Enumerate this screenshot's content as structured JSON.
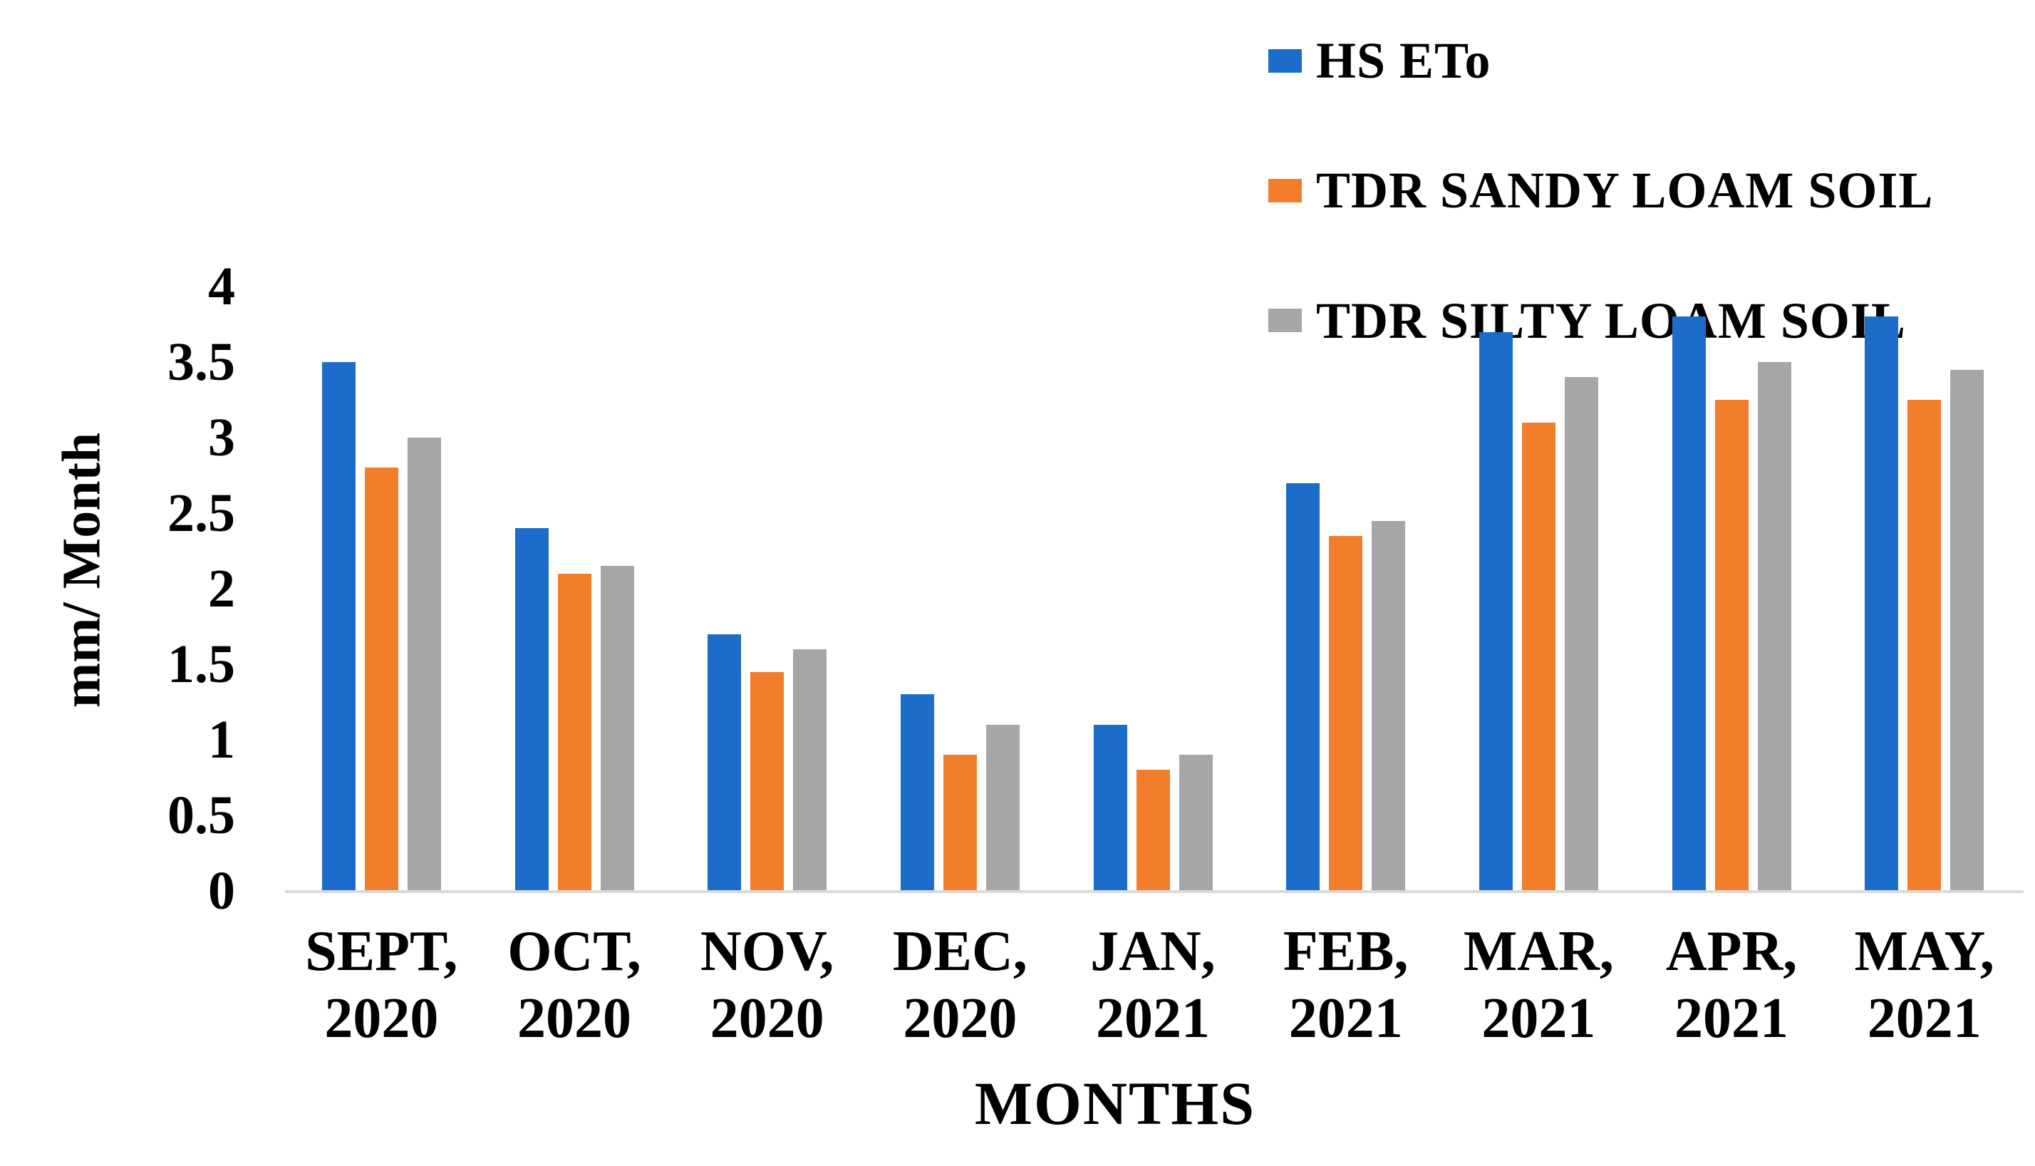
{
  "chart_data": {
    "type": "bar",
    "title": "",
    "xlabel": "MONTHS",
    "ylabel": "mm/ Month",
    "ylim": [
      0,
      4
    ],
    "ytick_step": 0.5,
    "yticks": [
      {
        "value": 4,
        "label": "4"
      },
      {
        "value": 3.5,
        "label": "3.5"
      },
      {
        "value": 3,
        "label": "3"
      },
      {
        "value": 2.5,
        "label": "2.5"
      },
      {
        "value": 2,
        "label": "2"
      },
      {
        "value": 1.5,
        "label": "1.5"
      },
      {
        "value": 1,
        "label": "1"
      },
      {
        "value": 0.5,
        "label": "0.5"
      },
      {
        "value": 0,
        "label": "0"
      }
    ],
    "categories": [
      {
        "line1": "SEPT,",
        "line2": "2020"
      },
      {
        "line1": "OCT,",
        "line2": "2020"
      },
      {
        "line1": "NOV,",
        "line2": "2020"
      },
      {
        "line1": "DEC,",
        "line2": "2020"
      },
      {
        "line1": "JAN,",
        "line2": "2021"
      },
      {
        "line1": "FEB,",
        "line2": "2021"
      },
      {
        "line1": "MAR,",
        "line2": "2021"
      },
      {
        "line1": "APR,",
        "line2": "2021"
      },
      {
        "line1": "MAY,",
        "line2": "2021"
      }
    ],
    "series": [
      {
        "name": "HS ETo",
        "color": "#1c6dc9",
        "values": [
          3.5,
          2.4,
          1.7,
          1.3,
          1.1,
          2.7,
          3.7,
          3.8,
          3.8
        ]
      },
      {
        "name": "TDR SANDY LOAM SOIL",
        "color": "#f27d2a",
        "values": [
          2.8,
          2.1,
          1.45,
          0.9,
          0.8,
          2.35,
          3.1,
          3.25,
          3.25
        ]
      },
      {
        "name": "TDR SILTY LOAM SOIL",
        "color": "#a6a6a6",
        "values": [
          3.0,
          2.15,
          1.6,
          1.1,
          0.9,
          2.45,
          3.4,
          3.5,
          3.45
        ]
      }
    ],
    "legend_position": "top-right",
    "grid": false,
    "axis_line_color": "#d9d9d9",
    "text_color": "#000000",
    "background": "#ffffff"
  }
}
